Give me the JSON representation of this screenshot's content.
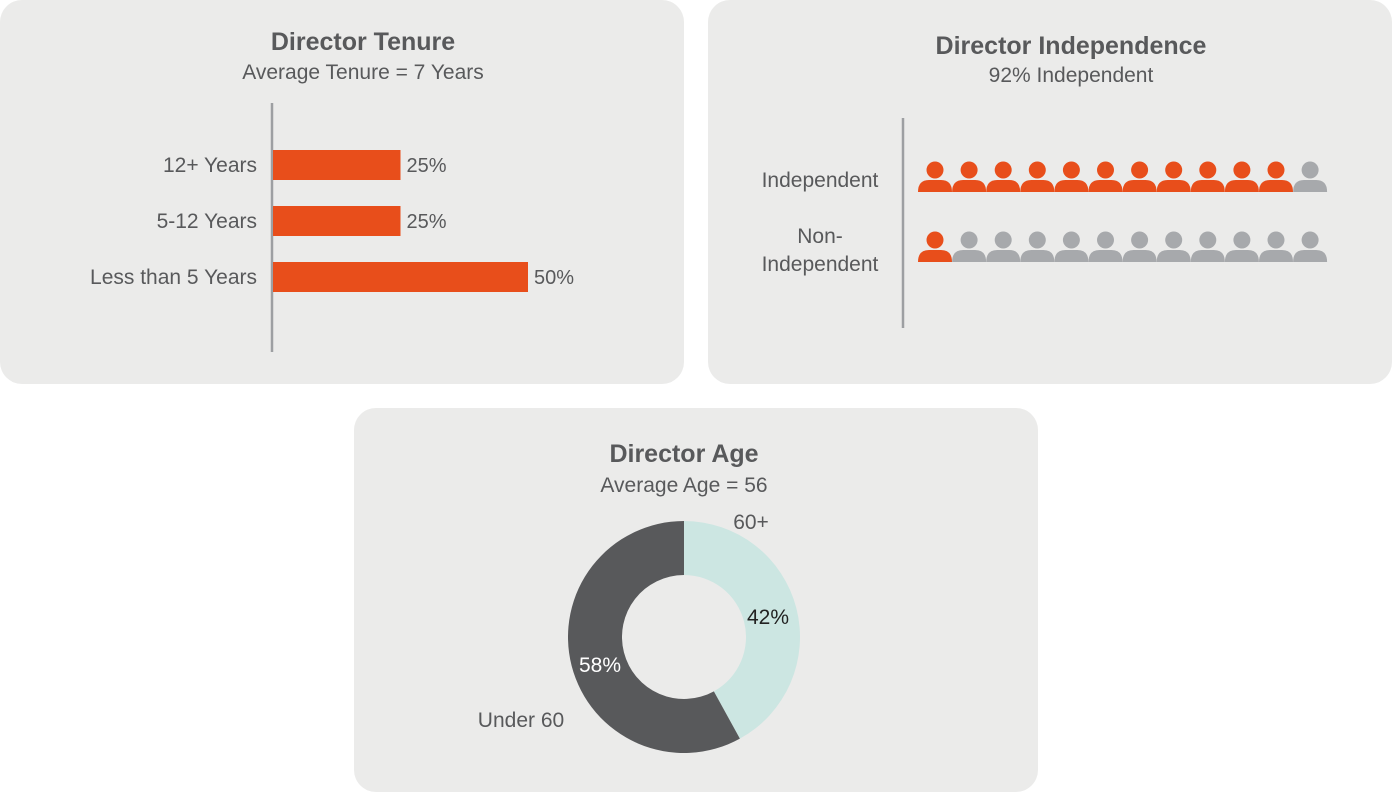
{
  "colors": {
    "accent": "#e84e1b",
    "neutral_person": "#a7a9ac",
    "text": "#58595b",
    "panel_bg": "#ebebea",
    "age_under": "#58595b",
    "age_over": "#cce6e2"
  },
  "chart_data": [
    {
      "type": "bar",
      "orientation": "horizontal",
      "title": "Director Tenure",
      "subtitle": "Average Tenure = 7 Years",
      "categories": [
        "12+ Years",
        "5-12 Years",
        "Less than 5 Years"
      ],
      "values": [
        25,
        25,
        50
      ],
      "value_labels": [
        "25%",
        "25%",
        "50%"
      ],
      "unit": "%",
      "xlim": [
        0,
        100
      ],
      "grid": false
    },
    {
      "type": "pictogram",
      "title": "Director Independence",
      "subtitle": "92% Independent",
      "icon": "person-icon",
      "icons_per_row": 12,
      "rows": [
        {
          "label_lines": [
            "Independent"
          ],
          "highlighted": 11,
          "total": 12
        },
        {
          "label_lines": [
            "Non-",
            "Independent"
          ],
          "highlighted": 1,
          "total": 12
        }
      ]
    },
    {
      "type": "pie",
      "style": "donut",
      "title": "Director Age",
      "subtitle": "Average Age = 56",
      "slices": [
        {
          "label": "60+",
          "value": 42,
          "value_label": "42%",
          "color": "#cce6e2"
        },
        {
          "label": "Under 60",
          "value": 58,
          "value_label": "58%",
          "color": "#58595b"
        }
      ]
    }
  ]
}
